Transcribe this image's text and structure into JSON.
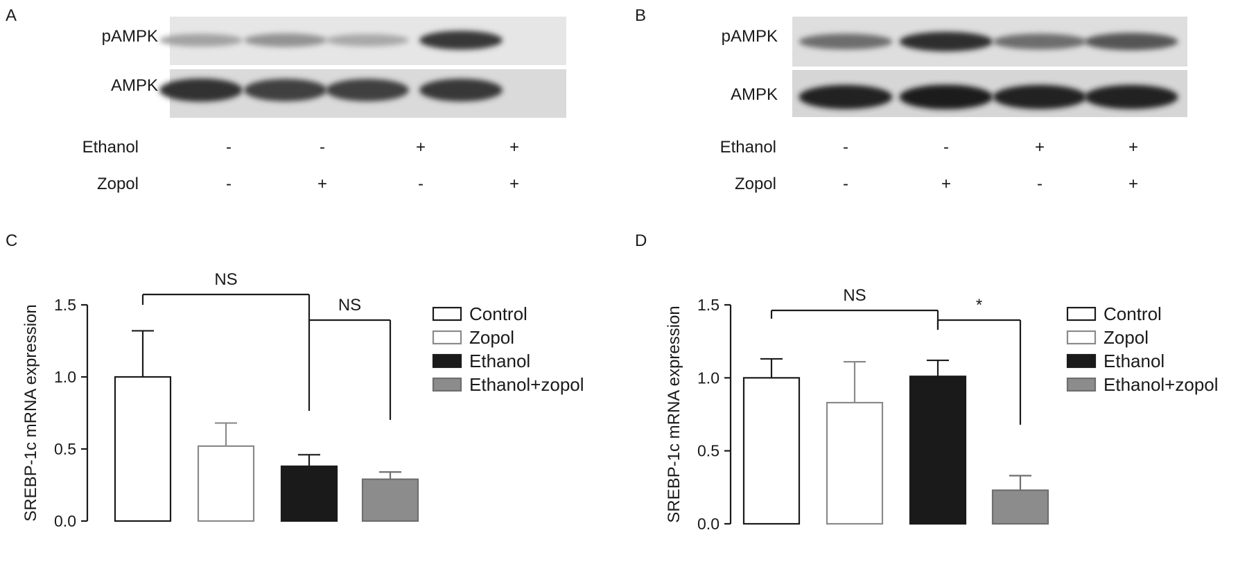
{
  "panels": {
    "A": {
      "letter": "A",
      "bands": {
        "top": "pAMPK",
        "bottom": "AMPK"
      },
      "treatments": [
        {
          "label": "Ethanol",
          "lanes": [
            "-",
            "-",
            "+",
            "+"
          ]
        },
        {
          "label": "Zopol",
          "lanes": [
            "-",
            "+",
            "-",
            "+"
          ]
        }
      ],
      "pAMPK_band_intensity": [
        0.35,
        0.42,
        0.32,
        0.85
      ],
      "AMPK_band_intensity": [
        0.88,
        0.82,
        0.82,
        0.85
      ]
    },
    "B": {
      "letter": "B",
      "bands": {
        "top": "pAMPK",
        "bottom": "AMPK"
      },
      "treatments": [
        {
          "label": "Ethanol",
          "lanes": [
            "-",
            "-",
            "+",
            "+"
          ]
        },
        {
          "label": "Zopol",
          "lanes": [
            "-",
            "+",
            "-",
            "+"
          ]
        }
      ],
      "pAMPK_band_intensity": [
        0.6,
        0.9,
        0.6,
        0.72
      ],
      "AMPK_band_intensity": [
        0.95,
        0.98,
        0.95,
        0.95
      ]
    },
    "C": {
      "letter": "C"
    },
    "D": {
      "letter": "D"
    }
  },
  "colors": {
    "control_fill": "#ffffff",
    "control_stroke": "#1a1a1a",
    "zopol_fill": "#ffffff",
    "zopol_stroke": "#8a8a8a",
    "ethanol_fill": "#1a1a1a",
    "ethanol_zopol_fill": "#8c8c8c",
    "axis": "#1a1a1a"
  },
  "chart_data": [
    {
      "type": "bar",
      "panel": "C",
      "ylabel": "SREBP-1c mRNA expression",
      "xlabel": "",
      "ylim": [
        0,
        1.5
      ],
      "yticks": [
        "0.0",
        "0.5",
        "1.0",
        "1.5"
      ],
      "categories": [
        "Control",
        "Zopol",
        "Ethanol",
        "Ethanol+zopol"
      ],
      "values": [
        1.0,
        0.52,
        0.38,
        0.29
      ],
      "errors": [
        0.32,
        0.16,
        0.08,
        0.05
      ],
      "legend": [
        "Control",
        "Zopol",
        "Ethanol",
        "Ethanol+zopol"
      ],
      "legend_position": "right",
      "annotations": [
        {
          "text": "NS",
          "from": 0,
          "to": 2
        },
        {
          "text": "NS",
          "from": 2,
          "to": 3
        }
      ]
    },
    {
      "type": "bar",
      "panel": "D",
      "ylabel": "SREBP-1c mRNA expression",
      "xlabel": "",
      "ylim": [
        0,
        1.5
      ],
      "yticks": [
        "0.0",
        "0.5",
        "1.0",
        "1.5"
      ],
      "categories": [
        "Control",
        "Zopol",
        "Ethanol",
        "Ethanol+zopol"
      ],
      "values": [
        1.0,
        0.83,
        1.01,
        0.23
      ],
      "errors": [
        0.13,
        0.28,
        0.11,
        0.1
      ],
      "legend": [
        "Control",
        "Zopol",
        "Ethanol",
        "Ethanol+zopol"
      ],
      "legend_position": "right",
      "annotations": [
        {
          "text": "NS",
          "from": 0,
          "to": 2
        },
        {
          "text": "*",
          "from": 2,
          "to": 3
        }
      ]
    }
  ]
}
